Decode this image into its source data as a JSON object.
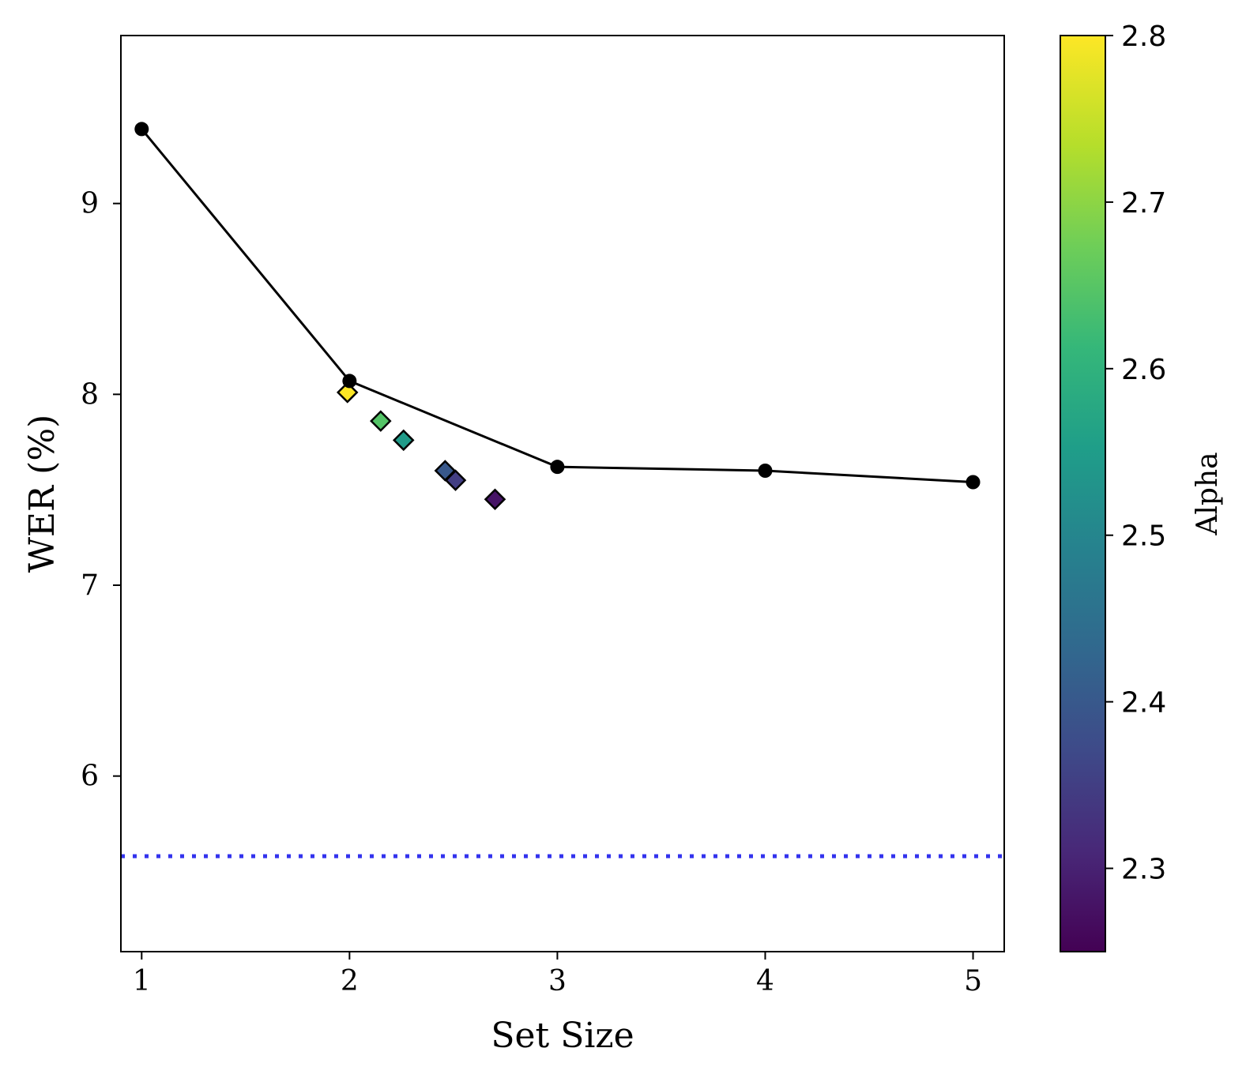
{
  "chart_data": {
    "type": "line",
    "xlabel": "Set Size",
    "ylabel": "WER (%)",
    "xlim": [
      0.9,
      5.15
    ],
    "ylim": [
      5.08,
      9.88
    ],
    "x_ticks": [
      1,
      2,
      3,
      4,
      5
    ],
    "y_ticks": [
      6,
      7,
      8,
      9
    ],
    "grid": false,
    "series": [
      {
        "style": "black line with circle markers",
        "color": "#000000",
        "x": [
          1,
          2,
          3,
          4,
          5
        ],
        "y": [
          9.39,
          8.07,
          7.62,
          7.6,
          7.54
        ]
      },
      {
        "style": "diamond markers colored by Alpha",
        "x": [
          1.99,
          2.15,
          2.26,
          2.46,
          2.51,
          2.7
        ],
        "y": [
          8.01,
          7.86,
          7.76,
          7.6,
          7.55,
          7.45
        ],
        "alpha": [
          2.8,
          2.65,
          2.55,
          2.4,
          2.35,
          2.28
        ]
      }
    ],
    "reference_line": {
      "y": 5.58,
      "color": "#3333ee",
      "style": "dotted"
    },
    "colorbar": {
      "label": "Alpha",
      "colormap": "viridis",
      "range": [
        2.25,
        2.8
      ],
      "ticks": [
        "2.3",
        "2.4",
        "2.5",
        "2.6",
        "2.7",
        "2.8"
      ]
    }
  }
}
